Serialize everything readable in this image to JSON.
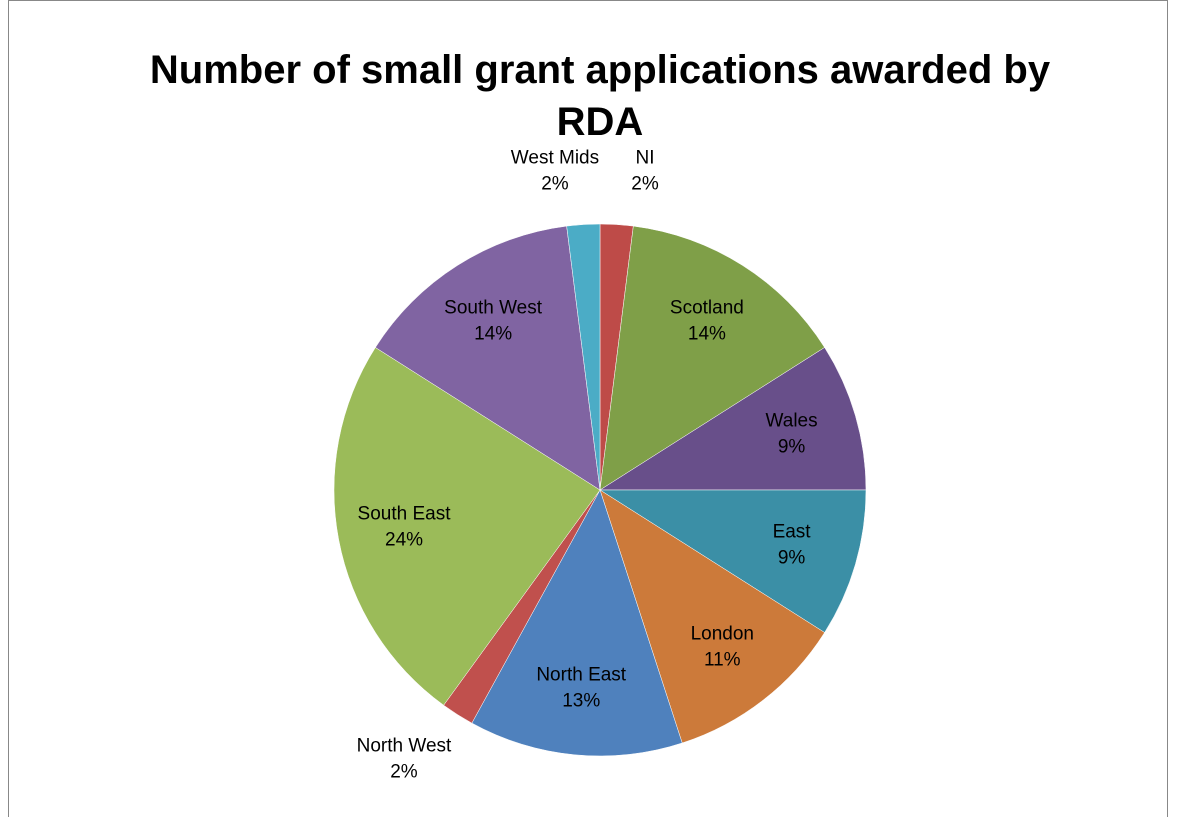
{
  "chart_data": {
    "type": "pie",
    "title": "Number of small grant applications awarded by RDA",
    "categories": [
      "NI",
      "Scotland",
      "Wales",
      "East",
      "London",
      "North East",
      "North West",
      "South East",
      "South West",
      "West Mids"
    ],
    "values": [
      2,
      14,
      9,
      9,
      11,
      13,
      2,
      24,
      14,
      2
    ],
    "value_labels": [
      "2%",
      "14%",
      "9%",
      "9%",
      "11%",
      "13%",
      "2%",
      "24%",
      "14%",
      "2%"
    ],
    "colors": [
      "#be4b48",
      "#7f9f48",
      "#684f8a",
      "#3b8fa6",
      "#cc7a3a",
      "#4f81bd",
      "#c0504d",
      "#9bbb59",
      "#8064a2",
      "#4bacc6"
    ]
  }
}
